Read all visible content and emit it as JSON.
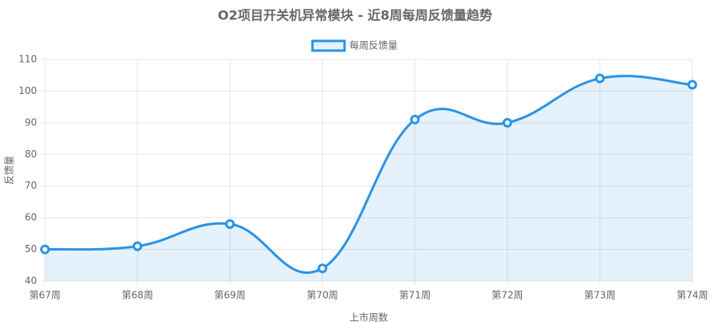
{
  "chart_data": {
    "type": "line",
    "title": "O2项目开关机异常模块 - 近8周每周反馈量趋势",
    "x_label": "上市周数",
    "y_label": "反馈量",
    "categories": [
      "第67周",
      "第68周",
      "第69周",
      "第70周",
      "第71周",
      "第72周",
      "第73周",
      "第74周"
    ],
    "series": [
      {
        "name": "每周反馈量",
        "color": "#2a93e6",
        "values": [
          50,
          51,
          58,
          44,
          91,
          90,
          104,
          102
        ]
      }
    ],
    "ylim": [
      40,
      110
    ],
    "yticks": [
      40,
      50,
      60,
      70,
      80,
      90,
      100,
      110
    ],
    "grid": true,
    "fill": true,
    "legend": "top"
  }
}
